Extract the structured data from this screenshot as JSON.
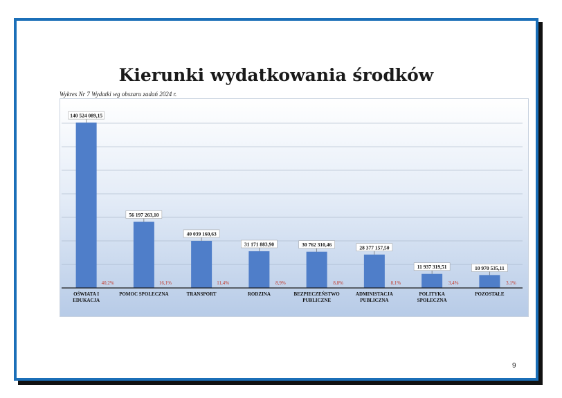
{
  "page": {
    "title": "Kierunki wydatkowania środków",
    "caption": "Wykres Nr 7  Wydatki wg  obszaru zadań  2024 r.",
    "page_number": "9"
  },
  "colors": {
    "frame": "#1b6fb8",
    "bar": "#4f7ec9",
    "percent": "#c0392b"
  },
  "chart_data": {
    "type": "bar",
    "categories": [
      [
        "OŚWIATA I",
        "EDUKACJA"
      ],
      [
        "POMOC SPOŁECZNA"
      ],
      [
        "TRANSPORT"
      ],
      [
        "RODZINA"
      ],
      [
        "BEZPIECZEŃSTWO",
        "PUBLICZNE"
      ],
      [
        "ADMINISTACJA",
        "PUBLICZNA"
      ],
      [
        "POLITYKA",
        "SPOŁECZNA"
      ],
      [
        "POZOSTAŁE"
      ]
    ],
    "values": [
      140524089.15,
      56197263.1,
      40039160.63,
      31171883.9,
      30762310.46,
      28377157.5,
      11937319.51,
      10970535.11
    ],
    "value_labels": [
      "140 524 089,15",
      "56 197 263,10",
      "40 039 160,63",
      "31 171 883,90",
      "30 762 310,46",
      "28 377 157,50",
      "11 937 319,51",
      "10 970 535,11"
    ],
    "percent_labels": [
      "40,2%",
      "16,1%",
      "11,4%",
      "8,9%",
      "8,8%",
      "8,1%",
      "3,4%",
      "3,1%"
    ],
    "ylim": [
      0,
      140000000
    ],
    "grid": true,
    "title": "",
    "xlabel": "",
    "ylabel": ""
  }
}
